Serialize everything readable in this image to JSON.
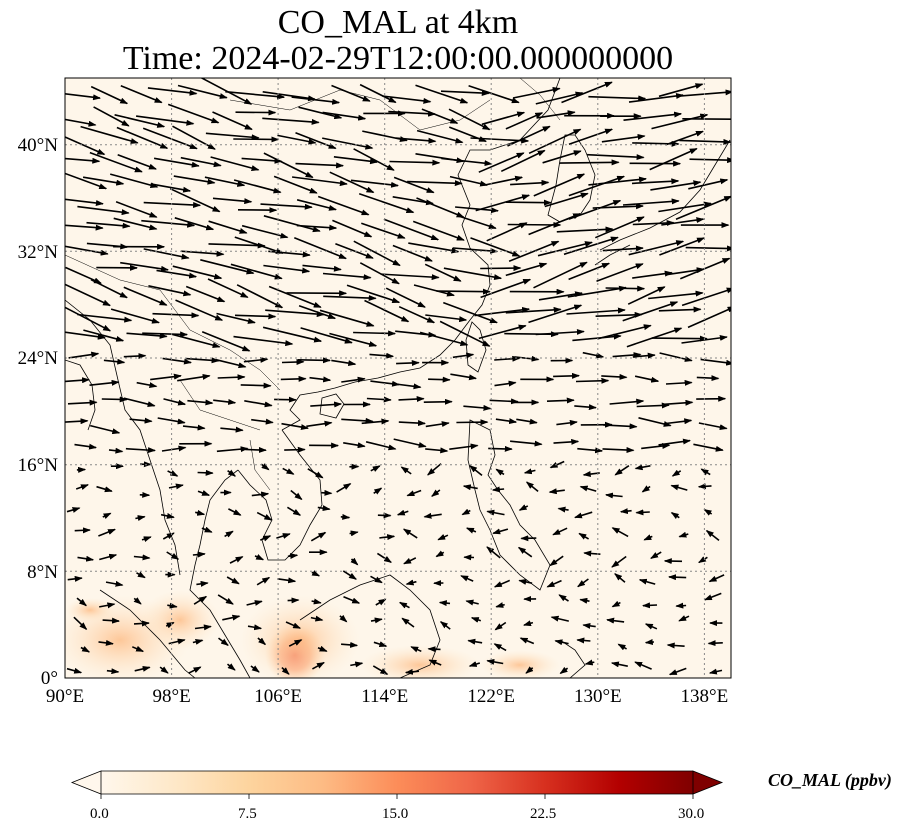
{
  "title": {
    "line1": "CO_MAL at 4km",
    "line2": "Time: 2024-02-29T12:00:00.000000000"
  },
  "map": {
    "lon_range": [
      90,
      140
    ],
    "lat_range": [
      0,
      45
    ],
    "x_ticks": [
      "90°E",
      "98°E",
      "106°E",
      "114°E",
      "122°E",
      "130°E",
      "138°E"
    ],
    "y_ticks": [
      "0°",
      "8°N",
      "16°N",
      "24°N",
      "32°N",
      "40°N"
    ],
    "gridlines": true,
    "background_color": "#fef6ea",
    "coastline_color": "#000000",
    "wind_arrows": "black quiver vectors, predominantly westerly/north-westerly in the north, weak and variable in the south"
  },
  "colorbar": {
    "label": "CO_MAL (ppbv)",
    "ticks": [
      "0.0",
      "7.5",
      "15.0",
      "22.5",
      "30.0"
    ],
    "min": 0,
    "max": 30,
    "colormap": "OrRd",
    "colors": [
      "#fff7ec",
      "#fee8c8",
      "#fdd49e",
      "#fdbb84",
      "#fc8d59",
      "#ef6548",
      "#d7301f",
      "#b30000",
      "#7f0000"
    ]
  }
}
